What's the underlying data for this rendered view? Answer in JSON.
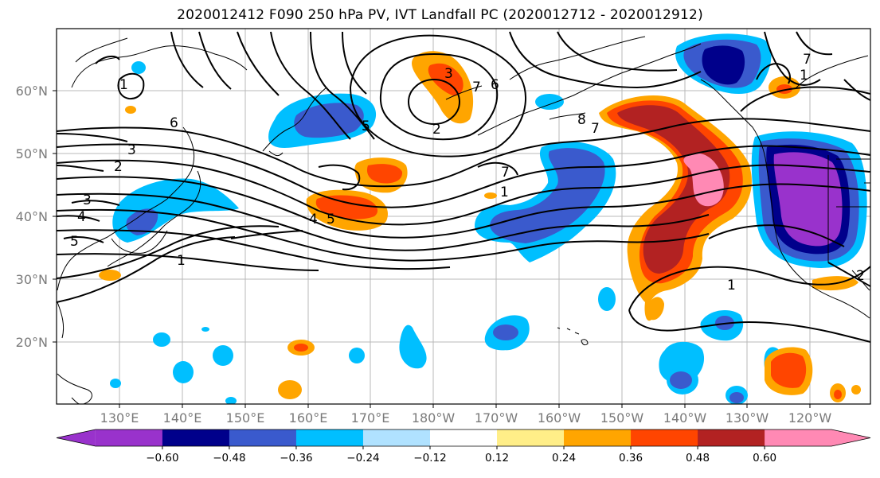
{
  "title": "2020012412 F090 250 hPa PV, IVT Landfall PC (2020012712 - 2020012912)",
  "lat_labels": [
    "60°N",
    "50°N",
    "40°N",
    "30°N",
    "20°N"
  ],
  "lon_labels": [
    "130°E",
    "140°E",
    "150°E",
    "160°E",
    "170°E",
    "180°W",
    "170°W",
    "160°W",
    "150°W",
    "140°W",
    "130°W",
    "120°W"
  ],
  "colorbar": {
    "colors": [
      "#9932cc",
      "#00008b",
      "#3a5acd",
      "#00bfff",
      "#b0e2ff",
      "#ffffff",
      "#ffee88",
      "#ffa500",
      "#ff4500",
      "#b22222",
      "#ff89b4"
    ],
    "ticks": [
      "−0.60",
      "−0.48",
      "−0.36",
      "−0.24",
      "−0.12",
      "0.12",
      "0.24",
      "0.36",
      "0.48",
      "0.60"
    ]
  },
  "contour_labels": [
    "1",
    "6",
    "3",
    "2",
    "3",
    "4",
    "5",
    "1",
    "3",
    "2",
    "6",
    "7",
    "8",
    "7",
    "5",
    "4",
    "5",
    "7",
    "7",
    "1",
    "1",
    "1",
    "2"
  ]
}
